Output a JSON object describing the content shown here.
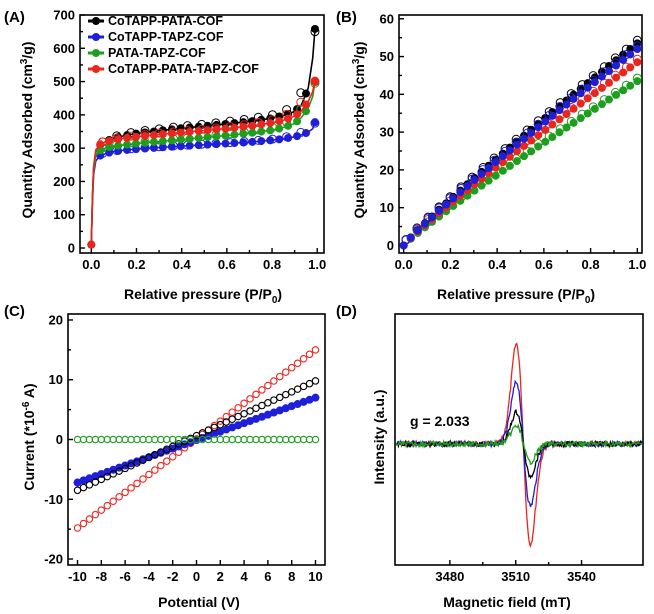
{
  "chart_data": [
    {
      "panel": "(A)",
      "type": "scatter",
      "xlabel": "Relative pressure (P/P0)",
      "ylabel": "Quantity Adsorbed (cm3/g)",
      "xlim": [
        -0.05,
        1.03
      ],
      "ylim": [
        -15,
        700
      ],
      "xticks": [
        0.0,
        0.2,
        0.4,
        0.6,
        0.8,
        1.0
      ],
      "yticks": [
        0,
        100,
        200,
        300,
        400,
        500,
        600,
        700
      ],
      "legend": "top-left",
      "series": [
        {
          "name": "CoTAPP-PATA-COF",
          "color": "#000000",
          "x": [
            0.0,
            0.005,
            0.01,
            0.02,
            0.04,
            0.07,
            0.1,
            0.15,
            0.2,
            0.3,
            0.4,
            0.5,
            0.6,
            0.7,
            0.8,
            0.85,
            0.9,
            0.93,
            0.96,
            0.98,
            0.99
          ],
          "y": [
            10,
            150,
            240,
            290,
            310,
            322,
            330,
            338,
            344,
            352,
            360,
            366,
            373,
            380,
            390,
            398,
            410,
            430,
            480,
            570,
            658
          ],
          "desorption_y": [
            null,
            null,
            null,
            null,
            315,
            327,
            335,
            343,
            350,
            358,
            366,
            372,
            380,
            388,
            400,
            410,
            430,
            470,
            560,
            630,
            650
          ]
        },
        {
          "name": "CoTAPP-TAPZ-COF",
          "color": "#1f1fd8",
          "x": [
            0.0,
            0.005,
            0.01,
            0.02,
            0.04,
            0.07,
            0.1,
            0.15,
            0.2,
            0.3,
            0.4,
            0.5,
            0.6,
            0.7,
            0.8,
            0.85,
            0.9,
            0.93,
            0.96,
            0.98,
            0.99
          ],
          "y": [
            10,
            130,
            220,
            262,
            278,
            285,
            290,
            294,
            297,
            302,
            306,
            310,
            314,
            318,
            324,
            328,
            334,
            340,
            348,
            358,
            378
          ],
          "desorption_y": [
            null,
            null,
            null,
            null,
            282,
            288,
            292,
            296,
            300,
            304,
            308,
            312,
            316,
            321,
            327,
            332,
            340,
            348,
            356,
            365,
            375
          ]
        },
        {
          "name": "PATA-TAPZ-COF",
          "color": "#1e9e1e",
          "x": [
            0.0,
            0.005,
            0.01,
            0.02,
            0.04,
            0.07,
            0.1,
            0.15,
            0.2,
            0.3,
            0.4,
            0.5,
            0.6,
            0.7,
            0.8,
            0.85,
            0.9,
            0.93,
            0.96,
            0.98,
            0.99
          ],
          "y": [
            10,
            140,
            230,
            278,
            294,
            302,
            306,
            310,
            314,
            320,
            326,
            332,
            338,
            345,
            354,
            362,
            374,
            392,
            420,
            455,
            500
          ],
          "desorption_y": [
            null,
            null,
            null,
            null,
            298,
            306,
            310,
            314,
            318,
            324,
            330,
            336,
            343,
            350,
            362,
            372,
            390,
            420,
            455,
            480,
            495
          ]
        },
        {
          "name": "CoTAPP-PATA-TAPZ-COF",
          "color": "#e8261e",
          "x": [
            0.0,
            0.005,
            0.01,
            0.02,
            0.04,
            0.07,
            0.1,
            0.15,
            0.2,
            0.3,
            0.4,
            0.5,
            0.6,
            0.7,
            0.8,
            0.85,
            0.9,
            0.93,
            0.96,
            0.98,
            0.99
          ],
          "y": [
            10,
            150,
            245,
            295,
            312,
            320,
            325,
            330,
            334,
            341,
            347,
            353,
            359,
            366,
            376,
            384,
            396,
            412,
            440,
            470,
            503
          ],
          "desorption_y": [
            null,
            null,
            null,
            null,
            316,
            324,
            329,
            334,
            338,
            345,
            351,
            357,
            364,
            372,
            385,
            396,
            415,
            440,
            470,
            490,
            500
          ]
        }
      ]
    },
    {
      "panel": "(B)",
      "type": "scatter",
      "xlabel": "Relative pressure (P/P0)",
      "ylabel": "Quantity Adsorbed (cm3/g)",
      "xlim": [
        -0.02,
        1.02
      ],
      "ylim": [
        -2,
        61
      ],
      "xticks": [
        0.0,
        0.2,
        0.4,
        0.6,
        0.8,
        1.0
      ],
      "yticks": [
        0,
        10,
        20,
        30,
        40,
        50,
        60
      ],
      "series": [
        {
          "name": "CoTAPP-PATA-COF",
          "color": "#000000",
          "end_value": 53.5
        },
        {
          "name": "CoTAPP-TAPZ-COF",
          "color": "#1f1fd8",
          "end_value": 52.0
        },
        {
          "name": "PATA-TAPZ-COF",
          "color": "#1e9e1e",
          "end_value": 43.5
        },
        {
          "name": "CoTAPP-PATA-TAPZ-COF",
          "color": "#e8261e",
          "end_value": 48.5
        }
      ]
    },
    {
      "panel": "(C)",
      "type": "scatter",
      "xlabel": "Potential (V)",
      "ylabel": "Current (*10-6 A)",
      "xlim": [
        -10.8,
        10.8
      ],
      "ylim": [
        -21,
        21
      ],
      "xticks": [
        -10,
        -8,
        -6,
        -4,
        -2,
        0,
        2,
        4,
        6,
        8,
        10
      ],
      "yticks": [
        -20,
        -10,
        0,
        10,
        20
      ],
      "series": [
        {
          "name": "CoTAPP-PATA-COF",
          "color": "#000000",
          "x": [
            -10,
            10
          ],
          "y": [
            -8.5,
            9.8
          ]
        },
        {
          "name": "CoTAPP-TAPZ-COF",
          "color": "#1f1fd8",
          "x": [
            -10,
            10
          ],
          "y": [
            -7.2,
            7.0
          ]
        },
        {
          "name": "PATA-TAPZ-COF",
          "color": "#1e9e1e",
          "x": [
            -10,
            10
          ],
          "y": [
            0.0,
            0.0
          ]
        },
        {
          "name": "CoTAPP-PATA-TAPZ-COF",
          "color": "#e8261e",
          "x": [
            -10,
            10
          ],
          "y": [
            -14.8,
            15.0
          ]
        }
      ]
    },
    {
      "panel": "(D)",
      "type": "line",
      "xlabel": "Magnetic field (mT)",
      "ylabel": "Intensity (a.u.)",
      "xlim": [
        3455,
        3568
      ],
      "xticks": [
        3480,
        3510,
        3540
      ],
      "annotation": "g = 2.033",
      "center_field": 3513.5,
      "series": [
        {
          "name": "CoTAPP-PATA-COF",
          "color": "#000000",
          "peak": 0.32,
          "trough": -0.32
        },
        {
          "name": "CoTAPP-TAPZ-COF",
          "color": "#1f1fd8",
          "peak": 0.62,
          "trough": -0.62
        },
        {
          "name": "PATA-TAPZ-COF",
          "color": "#1e9e1e",
          "peak": 0.18,
          "trough": -0.18
        },
        {
          "name": "CoTAPP-PATA-TAPZ-COF",
          "color": "#e8261e",
          "peak": 1.0,
          "trough": -1.0
        }
      ]
    }
  ]
}
